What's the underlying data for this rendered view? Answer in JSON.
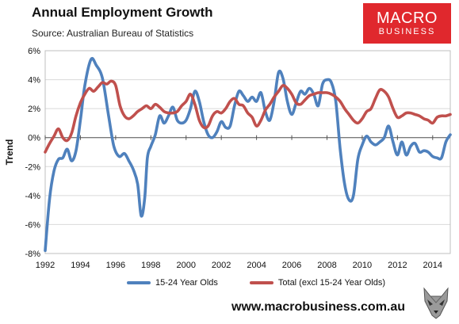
{
  "header": {
    "title": "Annual Employment Growth",
    "subtitle": "Source: Australian Bureau of Statistics"
  },
  "brand": {
    "line1": "MACRO",
    "line2": "BUSINESS",
    "color": "#e0282d"
  },
  "footer": {
    "website": "www.macrobusiness.com.au",
    "mascot_icon": "wolf-icon"
  },
  "chart_data": {
    "type": "line",
    "title": "Annual Employment Growth",
    "subtitle": "Source: Australian Bureau of Statistics",
    "xlabel": "",
    "ylabel": "Trend",
    "xlim": [
      1992,
      2015
    ],
    "ylim": [
      -8,
      6
    ],
    "x_ticks": [
      "1992",
      "1994",
      "1996",
      "1998",
      "2000",
      "2002",
      "2004",
      "2006",
      "2008",
      "2010",
      "2012",
      "2014"
    ],
    "y_ticks": [
      "6%",
      "4%",
      "2%",
      "0%",
      "-2%",
      "-4%",
      "-6%",
      "-8%"
    ],
    "grid": "horizontal",
    "legend_position": "bottom",
    "series": [
      {
        "name": "15-24 Year Olds",
        "color": "#4f81bd",
        "points": [
          [
            1992.0,
            -7.8
          ],
          [
            1992.25,
            -4.2
          ],
          [
            1992.5,
            -2.3
          ],
          [
            1992.75,
            -1.5
          ],
          [
            1993.0,
            -1.4
          ],
          [
            1993.25,
            -0.8
          ],
          [
            1993.5,
            -1.6
          ],
          [
            1993.75,
            -0.9
          ],
          [
            1994.0,
            1.2
          ],
          [
            1994.25,
            3.6
          ],
          [
            1994.6,
            5.4
          ],
          [
            1994.9,
            5.0
          ],
          [
            1995.25,
            4.1
          ],
          [
            1995.6,
            1.5
          ],
          [
            1995.9,
            -0.6
          ],
          [
            1996.2,
            -1.3
          ],
          [
            1996.5,
            -1.1
          ],
          [
            1996.75,
            -1.6
          ],
          [
            1997.0,
            -2.2
          ],
          [
            1997.25,
            -3.2
          ],
          [
            1997.45,
            -5.4
          ],
          [
            1997.65,
            -4.2
          ],
          [
            1997.8,
            -1.4
          ],
          [
            1998.0,
            -0.6
          ],
          [
            1998.25,
            0.2
          ],
          [
            1998.5,
            1.5
          ],
          [
            1998.75,
            1.0
          ],
          [
            1999.0,
            1.5
          ],
          [
            1999.25,
            2.1
          ],
          [
            1999.5,
            1.2
          ],
          [
            1999.75,
            1.0
          ],
          [
            2000.0,
            1.2
          ],
          [
            2000.25,
            2.0
          ],
          [
            2000.5,
            3.2
          ],
          [
            2000.75,
            2.5
          ],
          [
            2001.0,
            1.1
          ],
          [
            2001.25,
            0.2
          ],
          [
            2001.5,
            0.0
          ],
          [
            2001.75,
            0.4
          ],
          [
            2002.0,
            1.1
          ],
          [
            2002.25,
            0.7
          ],
          [
            2002.5,
            0.8
          ],
          [
            2002.75,
            2.2
          ],
          [
            2003.0,
            3.2
          ],
          [
            2003.25,
            2.9
          ],
          [
            2003.5,
            2.5
          ],
          [
            2003.75,
            2.8
          ],
          [
            2004.0,
            2.5
          ],
          [
            2004.25,
            3.1
          ],
          [
            2004.5,
            1.8
          ],
          [
            2004.75,
            1.2
          ],
          [
            2005.0,
            2.5
          ],
          [
            2005.25,
            4.5
          ],
          [
            2005.5,
            4.1
          ],
          [
            2005.75,
            2.5
          ],
          [
            2006.0,
            1.6
          ],
          [
            2006.25,
            2.4
          ],
          [
            2006.5,
            3.2
          ],
          [
            2006.75,
            3.0
          ],
          [
            2007.0,
            3.4
          ],
          [
            2007.25,
            3.0
          ],
          [
            2007.5,
            2.2
          ],
          [
            2007.75,
            3.7
          ],
          [
            2008.0,
            4.0
          ],
          [
            2008.25,
            3.8
          ],
          [
            2008.5,
            2.5
          ],
          [
            2008.75,
            -0.8
          ],
          [
            2009.0,
            -3.2
          ],
          [
            2009.25,
            -4.3
          ],
          [
            2009.5,
            -4.0
          ],
          [
            2009.75,
            -1.5
          ],
          [
            2010.0,
            -0.5
          ],
          [
            2010.25,
            0.1
          ],
          [
            2010.5,
            -0.3
          ],
          [
            2010.75,
            -0.5
          ],
          [
            2011.0,
            -0.3
          ],
          [
            2011.25,
            0.0
          ],
          [
            2011.5,
            0.8
          ],
          [
            2011.75,
            -0.3
          ],
          [
            2012.0,
            -1.2
          ],
          [
            2012.25,
            -0.3
          ],
          [
            2012.5,
            -1.2
          ],
          [
            2012.75,
            -0.6
          ],
          [
            2013.0,
            -0.4
          ],
          [
            2013.25,
            -1.0
          ],
          [
            2013.5,
            -0.9
          ],
          [
            2013.75,
            -1.0
          ],
          [
            2014.0,
            -1.3
          ],
          [
            2014.25,
            -1.4
          ],
          [
            2014.5,
            -1.4
          ],
          [
            2014.75,
            -0.3
          ],
          [
            2015.0,
            0.2
          ]
        ]
      },
      {
        "name": "Total (excl 15-24 Year Olds)",
        "color": "#c0504d",
        "points": [
          [
            1992.0,
            -1.0
          ],
          [
            1992.25,
            -0.4
          ],
          [
            1992.5,
            0.1
          ],
          [
            1992.75,
            0.6
          ],
          [
            1993.0,
            0.0
          ],
          [
            1993.25,
            -0.2
          ],
          [
            1993.5,
            0.3
          ],
          [
            1993.75,
            1.5
          ],
          [
            1994.0,
            2.4
          ],
          [
            1994.25,
            3.0
          ],
          [
            1994.5,
            3.4
          ],
          [
            1994.75,
            3.2
          ],
          [
            1995.0,
            3.5
          ],
          [
            1995.25,
            3.8
          ],
          [
            1995.5,
            3.7
          ],
          [
            1995.75,
            3.9
          ],
          [
            1996.0,
            3.6
          ],
          [
            1996.25,
            2.2
          ],
          [
            1996.5,
            1.5
          ],
          [
            1996.75,
            1.3
          ],
          [
            1997.0,
            1.5
          ],
          [
            1997.25,
            1.8
          ],
          [
            1997.5,
            2.0
          ],
          [
            1997.75,
            2.2
          ],
          [
            1998.0,
            2.0
          ],
          [
            1998.25,
            2.3
          ],
          [
            1998.5,
            2.1
          ],
          [
            1998.75,
            1.8
          ],
          [
            1999.0,
            1.7
          ],
          [
            1999.25,
            1.7
          ],
          [
            1999.5,
            1.8
          ],
          [
            1999.75,
            2.2
          ],
          [
            2000.0,
            2.5
          ],
          [
            2000.25,
            3.0
          ],
          [
            2000.5,
            2.3
          ],
          [
            2000.75,
            1.2
          ],
          [
            2001.0,
            0.7
          ],
          [
            2001.25,
            0.8
          ],
          [
            2001.5,
            1.5
          ],
          [
            2001.75,
            1.8
          ],
          [
            2002.0,
            1.7
          ],
          [
            2002.25,
            2.0
          ],
          [
            2002.5,
            2.5
          ],
          [
            2002.75,
            2.7
          ],
          [
            2003.0,
            2.3
          ],
          [
            2003.25,
            2.2
          ],
          [
            2003.5,
            1.7
          ],
          [
            2003.75,
            1.4
          ],
          [
            2004.0,
            0.8
          ],
          [
            2004.25,
            1.2
          ],
          [
            2004.5,
            1.9
          ],
          [
            2004.75,
            2.3
          ],
          [
            2005.0,
            2.8
          ],
          [
            2005.25,
            3.2
          ],
          [
            2005.5,
            3.6
          ],
          [
            2005.75,
            3.4
          ],
          [
            2006.0,
            3.0
          ],
          [
            2006.25,
            2.4
          ],
          [
            2006.5,
            2.3
          ],
          [
            2006.75,
            2.6
          ],
          [
            2007.0,
            2.9
          ],
          [
            2007.25,
            3.0
          ],
          [
            2007.5,
            3.1
          ],
          [
            2007.75,
            3.1
          ],
          [
            2008.0,
            3.1
          ],
          [
            2008.25,
            3.0
          ],
          [
            2008.5,
            2.8
          ],
          [
            2008.75,
            2.5
          ],
          [
            2009.0,
            2.0
          ],
          [
            2009.25,
            1.6
          ],
          [
            2009.5,
            1.2
          ],
          [
            2009.75,
            1.0
          ],
          [
            2010.0,
            1.3
          ],
          [
            2010.25,
            1.8
          ],
          [
            2010.5,
            2.0
          ],
          [
            2010.75,
            2.7
          ],
          [
            2011.0,
            3.3
          ],
          [
            2011.25,
            3.2
          ],
          [
            2011.5,
            2.8
          ],
          [
            2011.75,
            2.0
          ],
          [
            2012.0,
            1.4
          ],
          [
            2012.25,
            1.5
          ],
          [
            2012.5,
            1.7
          ],
          [
            2012.75,
            1.7
          ],
          [
            2013.0,
            1.6
          ],
          [
            2013.25,
            1.5
          ],
          [
            2013.5,
            1.3
          ],
          [
            2013.75,
            1.2
          ],
          [
            2014.0,
            1.0
          ],
          [
            2014.25,
            1.4
          ],
          [
            2014.5,
            1.5
          ],
          [
            2014.75,
            1.5
          ],
          [
            2015.0,
            1.6
          ]
        ]
      }
    ]
  }
}
